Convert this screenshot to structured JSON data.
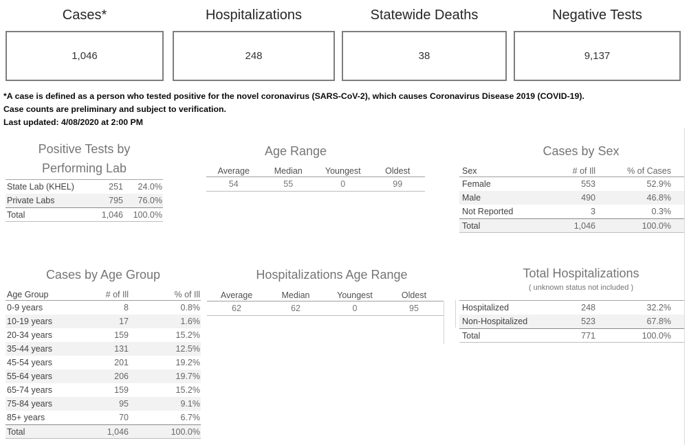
{
  "summary_cards": [
    {
      "title": "Cases*",
      "value": "1,046"
    },
    {
      "title": "Hospitalizations",
      "value": "248"
    },
    {
      "title": "Statewide Deaths",
      "value": "38"
    },
    {
      "title": "Negative Tests",
      "value": "9,137"
    }
  ],
  "notes": {
    "line1": "*A case is defined as a person who tested positive for the novel coronavirus (SARS-CoV-2), which causes Coronavirus Disease 2019 (COVID-19).",
    "line2": "Case counts are preliminary and subject to verification.",
    "line3": "Last updated: 4/08/2020 at 2:00 PM"
  },
  "tables": {
    "performing_lab": {
      "title_line1": "Positive Tests by",
      "title_line2": "Performing Lab",
      "rows": [
        [
          "State Lab (KHEL)",
          "251",
          "24.0%"
        ],
        [
          "Private Labs",
          "795",
          "76.0%"
        ],
        [
          "Total",
          "1,046",
          "100.0%"
        ]
      ]
    },
    "age_range": {
      "title": "Age Range",
      "headers": [
        "Average",
        "Median",
        "Youngest",
        "Oldest"
      ],
      "rows": [
        [
          "54",
          "55",
          "0",
          "99"
        ]
      ]
    },
    "cases_by_sex": {
      "title": "Cases by Sex",
      "headers": [
        "Sex",
        "# of Ill",
        "% of Cases"
      ],
      "rows": [
        [
          "Female",
          "553",
          "52.9%"
        ],
        [
          "Male",
          "490",
          "46.8%"
        ],
        [
          "Not Reported",
          "3",
          "0.3%"
        ],
        [
          "Total",
          "1,046",
          "100.0%"
        ]
      ]
    },
    "cases_by_age_group": {
      "title": "Cases by Age Group",
      "headers": [
        "Age Group",
        "# of Ill",
        "% of Ill"
      ],
      "rows": [
        [
          "0-9 years",
          "8",
          "0.8%"
        ],
        [
          "10-19 years",
          "17",
          "1.6%"
        ],
        [
          "20-34 years",
          "159",
          "15.2%"
        ],
        [
          "35-44 years",
          "131",
          "12.5%"
        ],
        [
          "45-54 years",
          "201",
          "19.2%"
        ],
        [
          "55-64 years",
          "206",
          "19.7%"
        ],
        [
          "65-74 years",
          "159",
          "15.2%"
        ],
        [
          "75-84 years",
          "95",
          "9.1%"
        ],
        [
          "85+ years",
          "70",
          "6.7%"
        ],
        [
          "Total",
          "1,046",
          "100.0%"
        ]
      ]
    },
    "hospitalizations_age_range": {
      "title": "Hospitalizations Age Range",
      "headers": [
        "Average",
        "Median",
        "Youngest",
        "Oldest"
      ],
      "rows": [
        [
          "62",
          "62",
          "0",
          "95"
        ]
      ]
    },
    "total_hospitalizations": {
      "title": "Total Hospitalizations",
      "subtitle": "( unknown status not included )",
      "rows": [
        [
          "Hospitalized",
          "248",
          "32.2%"
        ],
        [
          "Non-Hospitalized",
          "523",
          "67.8%"
        ],
        [
          "Total",
          "771",
          "100.0%"
        ]
      ]
    }
  },
  "colors": {
    "card_border": "#7d7d7d",
    "row_stripe": "#f2f2f2",
    "title_gray": "#757575",
    "text_dark": "#414141",
    "text_num": "#666666"
  }
}
